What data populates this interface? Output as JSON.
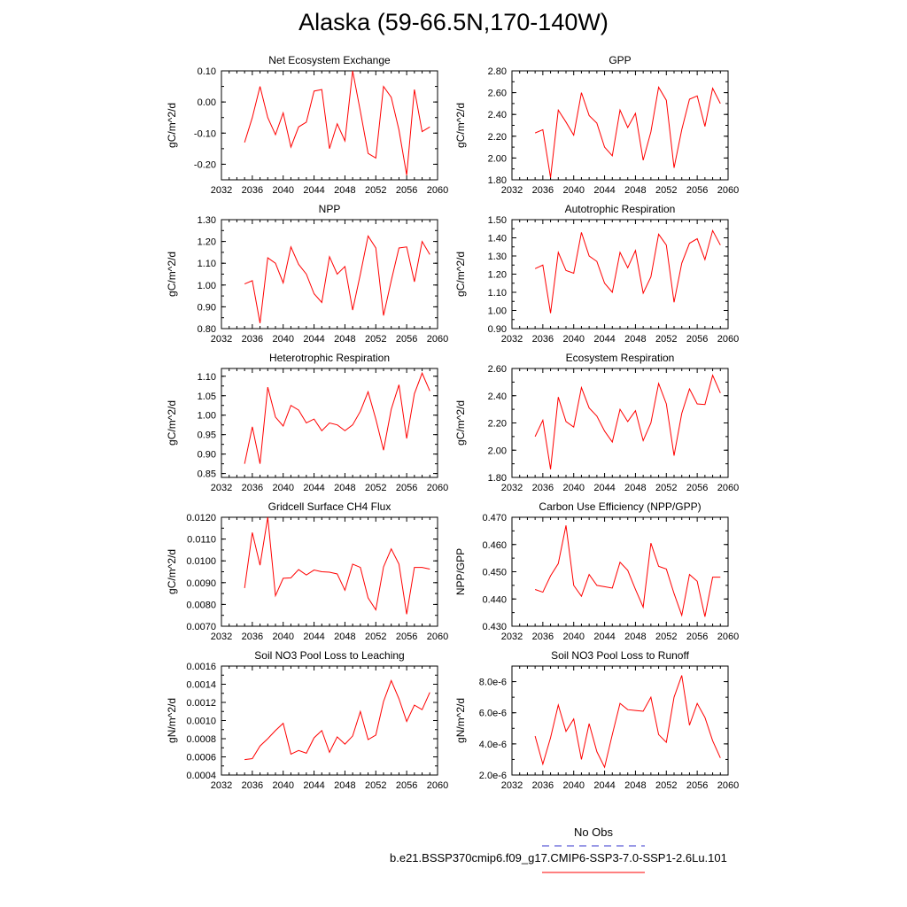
{
  "title": "Alaska (59-66.5N,170-140W)",
  "legend": {
    "obs_label": "No Obs",
    "case_label": "b.e21.BSSP370cmip6.f09_g17.CMIP6-SSP3-7.0-SSP1-2.6Lu.101",
    "obs_color": "#3333cc",
    "case_color": "#ff0000"
  },
  "chart_data": [
    {
      "type": "line",
      "title": "Net Ecosystem Exchange",
      "xlabel": "",
      "ylabel": "gC/m^2/d",
      "xlim": [
        2032,
        2060
      ],
      "ylim": [
        -0.25,
        0.1
      ],
      "xticks": [
        "2032",
        "2036",
        "2040",
        "2044",
        "2048",
        "2052",
        "2056",
        "2060"
      ],
      "yticks": [
        "-0.20",
        "-0.10",
        "0.00",
        "0.10"
      ],
      "ytick_values": [
        -0.2,
        -0.1,
        0.0,
        0.1
      ],
      "series": [
        {
          "color": "#ff0000",
          "x": [
            2035,
            2036,
            2037,
            2038,
            2039,
            2040,
            2041,
            2042,
            2043,
            2044,
            2045,
            2046,
            2047,
            2048,
            2049,
            2050,
            2051,
            2052,
            2053,
            2054,
            2055,
            2056,
            2057,
            2058,
            2059
          ],
          "values": [
            -0.13,
            -0.05,
            0.05,
            -0.05,
            -0.105,
            -0.035,
            -0.145,
            -0.08,
            -0.065,
            0.035,
            0.04,
            -0.15,
            -0.07,
            -0.125,
            0.1,
            -0.03,
            -0.165,
            -0.18,
            0.05,
            0.015,
            -0.09,
            -0.235,
            0.04,
            -0.095,
            -0.08
          ]
        }
      ]
    },
    {
      "type": "line",
      "title": "GPP",
      "xlabel": "",
      "ylabel": "gC/m^2/d",
      "xlim": [
        2032,
        2060
      ],
      "ylim": [
        1.8,
        2.8
      ],
      "xticks": [
        "2032",
        "2036",
        "2040",
        "2044",
        "2048",
        "2052",
        "2056",
        "2060"
      ],
      "yticks": [
        "1.80",
        "2.00",
        "2.20",
        "2.40",
        "2.60",
        "2.80"
      ],
      "ytick_values": [
        1.8,
        2.0,
        2.2,
        2.4,
        2.6,
        2.8
      ],
      "series": [
        {
          "color": "#ff0000",
          "x": [
            2035,
            2036,
            2037,
            2038,
            2039,
            2040,
            2041,
            2042,
            2043,
            2044,
            2045,
            2046,
            2047,
            2048,
            2049,
            2050,
            2051,
            2052,
            2053,
            2054,
            2055,
            2056,
            2057,
            2058,
            2059
          ],
          "values": [
            2.23,
            2.26,
            1.82,
            2.44,
            2.33,
            2.21,
            2.6,
            2.39,
            2.32,
            2.1,
            2.02,
            2.44,
            2.28,
            2.41,
            1.98,
            2.24,
            2.65,
            2.53,
            1.91,
            2.26,
            2.54,
            2.57,
            2.29,
            2.64,
            2.5
          ]
        }
      ]
    },
    {
      "type": "line",
      "title": "NPP",
      "xlabel": "",
      "ylabel": "gC/m^2/d",
      "xlim": [
        2032,
        2060
      ],
      "ylim": [
        0.8,
        1.3
      ],
      "xticks": [
        "2032",
        "2036",
        "2040",
        "2044",
        "2048",
        "2052",
        "2056",
        "2060"
      ],
      "yticks": [
        "0.80",
        "0.90",
        "1.00",
        "1.10",
        "1.20",
        "1.30"
      ],
      "ytick_values": [
        0.8,
        0.9,
        1.0,
        1.1,
        1.2,
        1.3
      ],
      "series": [
        {
          "color": "#ff0000",
          "x": [
            2035,
            2036,
            2037,
            2038,
            2039,
            2040,
            2041,
            2042,
            2043,
            2044,
            2045,
            2046,
            2047,
            2048,
            2049,
            2050,
            2051,
            2052,
            2053,
            2054,
            2055,
            2056,
            2057,
            2058,
            2059
          ],
          "values": [
            1.005,
            1.02,
            0.825,
            1.125,
            1.1,
            1.01,
            1.175,
            1.095,
            1.05,
            0.96,
            0.92,
            1.13,
            1.05,
            1.085,
            0.885,
            1.05,
            1.225,
            1.17,
            0.86,
            1.02,
            1.17,
            1.175,
            1.015,
            1.2,
            1.14
          ]
        }
      ]
    },
    {
      "type": "line",
      "title": "Autotrophic Respiration",
      "xlabel": "",
      "ylabel": "gC/m^2/d",
      "xlim": [
        2032,
        2060
      ],
      "ylim": [
        0.9,
        1.5
      ],
      "xticks": [
        "2032",
        "2036",
        "2040",
        "2044",
        "2048",
        "2052",
        "2056",
        "2060"
      ],
      "yticks": [
        "0.90",
        "1.00",
        "1.10",
        "1.20",
        "1.30",
        "1.40",
        "1.50"
      ],
      "ytick_values": [
        0.9,
        1.0,
        1.1,
        1.2,
        1.3,
        1.4,
        1.5
      ],
      "series": [
        {
          "color": "#ff0000",
          "x": [
            2035,
            2036,
            2037,
            2038,
            2039,
            2040,
            2041,
            2042,
            2043,
            2044,
            2045,
            2046,
            2047,
            2048,
            2049,
            2050,
            2051,
            2052,
            2053,
            2054,
            2055,
            2056,
            2057,
            2058,
            2059
          ],
          "values": [
            1.23,
            1.25,
            0.985,
            1.32,
            1.22,
            1.205,
            1.43,
            1.3,
            1.27,
            1.15,
            1.1,
            1.32,
            1.235,
            1.33,
            1.095,
            1.185,
            1.42,
            1.36,
            1.045,
            1.26,
            1.37,
            1.395,
            1.28,
            1.44,
            1.36
          ]
        }
      ]
    },
    {
      "type": "line",
      "title": "Heterotrophic Respiration",
      "xlabel": "",
      "ylabel": "gC/m^2/d",
      "xlim": [
        2032,
        2060
      ],
      "ylim": [
        0.84,
        1.12
      ],
      "xticks": [
        "2032",
        "2036",
        "2040",
        "2044",
        "2048",
        "2052",
        "2056",
        "2060"
      ],
      "yticks": [
        "0.85",
        "0.90",
        "0.95",
        "1.00",
        "1.05",
        "1.10"
      ],
      "ytick_values": [
        0.85,
        0.9,
        0.95,
        1.0,
        1.05,
        1.1
      ],
      "series": [
        {
          "color": "#ff0000",
          "x": [
            2035,
            2036,
            2037,
            2038,
            2039,
            2040,
            2041,
            2042,
            2043,
            2044,
            2045,
            2046,
            2047,
            2048,
            2049,
            2050,
            2051,
            2052,
            2053,
            2054,
            2055,
            2056,
            2057,
            2058,
            2059
          ],
          "values": [
            0.875,
            0.97,
            0.875,
            1.072,
            0.995,
            0.972,
            1.025,
            1.013,
            0.98,
            0.99,
            0.96,
            0.98,
            0.975,
            0.96,
            0.975,
            1.01,
            1.06,
            0.99,
            0.91,
            1.015,
            1.078,
            0.94,
            1.055,
            1.108,
            1.062
          ]
        }
      ]
    },
    {
      "type": "line",
      "title": "Ecosystem Respiration",
      "xlabel": "",
      "ylabel": "gC/m^2/d",
      "xlim": [
        2032,
        2060
      ],
      "ylim": [
        1.8,
        2.6
      ],
      "xticks": [
        "2032",
        "2036",
        "2040",
        "2044",
        "2048",
        "2052",
        "2056",
        "2060"
      ],
      "yticks": [
        "1.80",
        "2.00",
        "2.20",
        "2.40",
        "2.60"
      ],
      "ytick_values": [
        1.8,
        2.0,
        2.2,
        2.4,
        2.6
      ],
      "series": [
        {
          "color": "#ff0000",
          "x": [
            2035,
            2036,
            2037,
            2038,
            2039,
            2040,
            2041,
            2042,
            2043,
            2044,
            2045,
            2046,
            2047,
            2048,
            2049,
            2050,
            2051,
            2052,
            2053,
            2054,
            2055,
            2056,
            2057,
            2058,
            2059
          ],
          "values": [
            2.1,
            2.22,
            1.86,
            2.39,
            2.21,
            2.17,
            2.46,
            2.31,
            2.25,
            2.14,
            2.06,
            2.3,
            2.21,
            2.29,
            2.07,
            2.2,
            2.49,
            2.34,
            1.96,
            2.27,
            2.45,
            2.34,
            2.335,
            2.55,
            2.42
          ]
        }
      ]
    },
    {
      "type": "line",
      "title": "Gridcell Surface CH4 Flux",
      "xlabel": "",
      "ylabel": "gC/m^2/d",
      "xlim": [
        2032,
        2060
      ],
      "ylim": [
        0.007,
        0.012
      ],
      "xticks": [
        "2032",
        "2036",
        "2040",
        "2044",
        "2048",
        "2052",
        "2056",
        "2060"
      ],
      "yticks": [
        "0.0070",
        "0.0080",
        "0.0090",
        "0.0100",
        "0.0110",
        "0.0120"
      ],
      "ytick_values": [
        0.007,
        0.008,
        0.009,
        0.01,
        0.011,
        0.012
      ],
      "series": [
        {
          "color": "#ff0000",
          "x": [
            2035,
            2036,
            2037,
            2038,
            2039,
            2040,
            2041,
            2042,
            2043,
            2044,
            2045,
            2046,
            2047,
            2048,
            2049,
            2050,
            2051,
            2052,
            2053,
            2054,
            2055,
            2056,
            2057,
            2058,
            2059
          ],
          "values": [
            0.00875,
            0.0113,
            0.0098,
            0.012,
            0.0084,
            0.0092,
            0.00922,
            0.0096,
            0.00935,
            0.00958,
            0.0095,
            0.00948,
            0.0094,
            0.00865,
            0.00985,
            0.0097,
            0.0083,
            0.00775,
            0.00972,
            0.01055,
            0.00985,
            0.00755,
            0.0097,
            0.0097,
            0.00962
          ]
        }
      ]
    },
    {
      "type": "line",
      "title": "Carbon Use Efficiency (NPP/GPP)",
      "xlabel": "",
      "ylabel": "NPP/GPP",
      "xlim": [
        2032,
        2060
      ],
      "ylim": [
        0.43,
        0.47
      ],
      "xticks": [
        "2032",
        "2036",
        "2040",
        "2044",
        "2048",
        "2052",
        "2056",
        "2060"
      ],
      "yticks": [
        "0.430",
        "0.440",
        "0.450",
        "0.460",
        "0.470"
      ],
      "ytick_values": [
        0.43,
        0.44,
        0.45,
        0.46,
        0.47
      ],
      "series": [
        {
          "color": "#ff0000",
          "x": [
            2035,
            2036,
            2037,
            2038,
            2039,
            2040,
            2041,
            2042,
            2043,
            2044,
            2045,
            2046,
            2047,
            2048,
            2049,
            2050,
            2051,
            2052,
            2053,
            2054,
            2055,
            2056,
            2057,
            2058,
            2059
          ],
          "values": [
            0.4435,
            0.4425,
            0.4485,
            0.453,
            0.467,
            0.445,
            0.441,
            0.449,
            0.445,
            0.4445,
            0.444,
            0.4535,
            0.4505,
            0.4435,
            0.437,
            0.4605,
            0.452,
            0.451,
            0.442,
            0.434,
            0.449,
            0.4465,
            0.4335,
            0.448,
            0.448
          ]
        }
      ]
    },
    {
      "type": "line",
      "title": "Soil NO3 Pool Loss to Leaching",
      "xlabel": "",
      "ylabel": "gN/m^2/d",
      "xlim": [
        2032,
        2060
      ],
      "ylim": [
        0.0004,
        0.0016
      ],
      "xticks": [
        "2032",
        "2036",
        "2040",
        "2044",
        "2048",
        "2052",
        "2056",
        "2060"
      ],
      "yticks": [
        "0.0004",
        "0.0006",
        "0.0008",
        "0.0010",
        "0.0012",
        "0.0014",
        "0.0016"
      ],
      "ytick_values": [
        0.0004,
        0.0006,
        0.0008,
        0.001,
        0.0012,
        0.0014,
        0.0016
      ],
      "series": [
        {
          "color": "#ff0000",
          "x": [
            2035,
            2036,
            2037,
            2038,
            2039,
            2040,
            2041,
            2042,
            2043,
            2044,
            2045,
            2046,
            2047,
            2048,
            2049,
            2050,
            2051,
            2052,
            2053,
            2054,
            2055,
            2056,
            2057,
            2058,
            2059
          ],
          "values": [
            0.00057,
            0.00058,
            0.00072,
            0.0008,
            0.00089,
            0.00097,
            0.00063,
            0.00067,
            0.00064,
            0.00081,
            0.00089,
            0.00065,
            0.00082,
            0.00074,
            0.00083,
            0.0011,
            0.00079,
            0.00084,
            0.00121,
            0.00144,
            0.00124,
            0.00099,
            0.00117,
            0.00112,
            0.00131
          ]
        }
      ]
    },
    {
      "type": "line",
      "title": "Soil NO3 Pool Loss to Runoff",
      "xlabel": "",
      "ylabel": "gN/m^2/d",
      "xlim": [
        2032,
        2060
      ],
      "ylim": [
        2e-06,
        9e-06
      ],
      "xticks": [
        "2032",
        "2036",
        "2040",
        "2044",
        "2048",
        "2052",
        "2056",
        "2060"
      ],
      "yticks": [
        "2.0e-6",
        "4.0e-6",
        "6.0e-6",
        "8.0e-6"
      ],
      "ytick_values": [
        2e-06,
        4e-06,
        6e-06,
        8e-06
      ],
      "series": [
        {
          "color": "#ff0000",
          "x": [
            2035,
            2036,
            2037,
            2038,
            2039,
            2040,
            2041,
            2042,
            2043,
            2044,
            2045,
            2046,
            2047,
            2048,
            2049,
            2050,
            2051,
            2052,
            2053,
            2054,
            2055,
            2056,
            2057,
            2058,
            2059
          ],
          "values": [
            4.5e-06,
            2.7e-06,
            4.4e-06,
            6.5e-06,
            4.8e-06,
            5.6e-06,
            3e-06,
            5.3e-06,
            3.5e-06,
            2.5e-06,
            4.6e-06,
            6.6e-06,
            6.2e-06,
            6.15e-06,
            6.1e-06,
            7e-06,
            4.6e-06,
            4.1e-06,
            7e-06,
            8.4e-06,
            5.2e-06,
            6.6e-06,
            5.7e-06,
            4.2e-06,
            3.1e-06
          ]
        }
      ]
    }
  ]
}
